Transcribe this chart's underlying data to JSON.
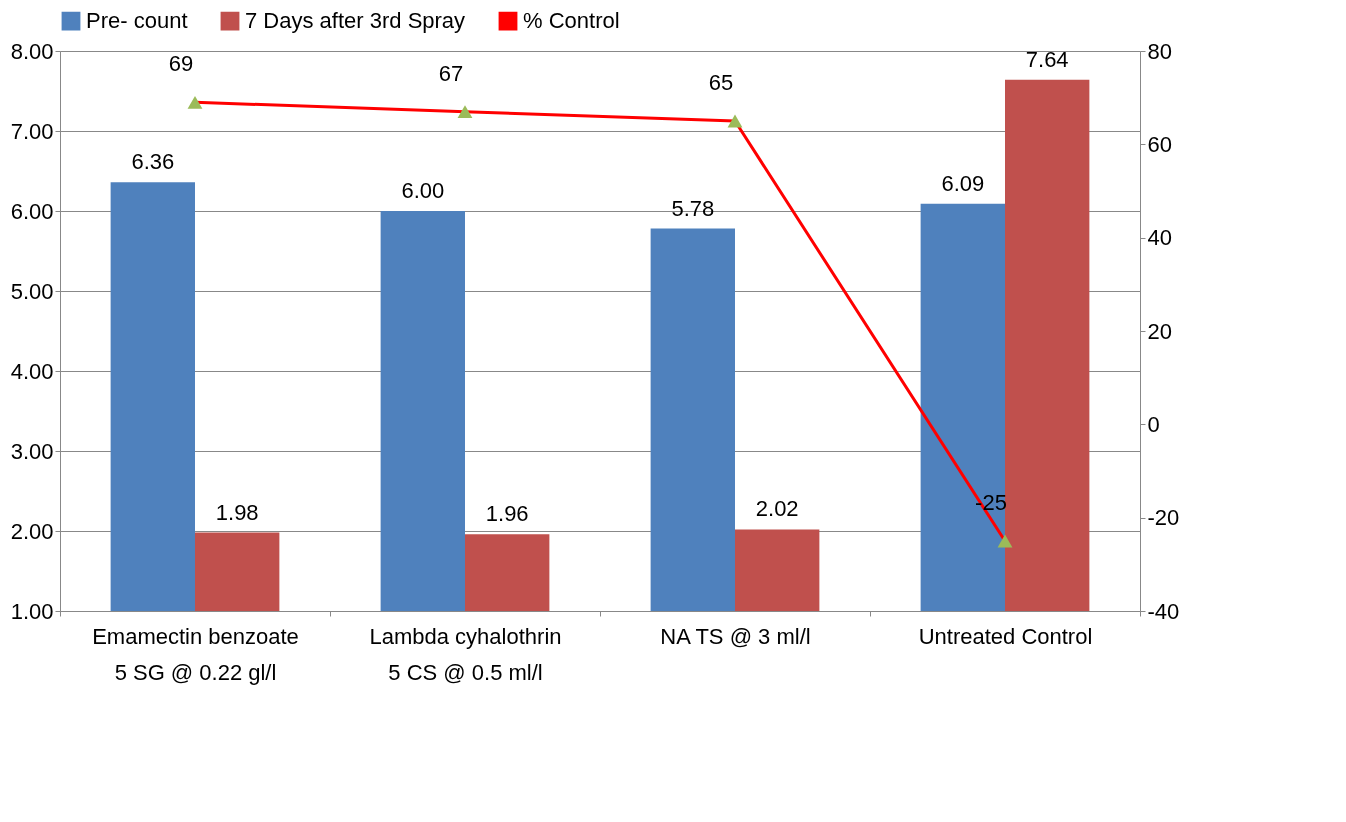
{
  "chart_data": {
    "type": "bar",
    "categories": [
      "Emamectin benzoate 5 SG @ 0.22 gl/l",
      "Lambda cyhalothrin 5 CS @ 0.5 ml/l",
      "NA TS @ 3 ml/l",
      "Untreated Control"
    ],
    "series": [
      {
        "name": "Pre- count",
        "type": "bar",
        "color": "#4f81bd",
        "values": [
          6.36,
          6.0,
          5.78,
          6.09
        ],
        "value_labels": [
          "6.36",
          "6.00",
          "5.78",
          "6.09"
        ]
      },
      {
        "name": "7 Days after 3rd Spray",
        "type": "bar",
        "color": "#c0504d",
        "values": [
          1.98,
          1.96,
          2.02,
          7.64
        ],
        "value_labels": [
          "1.98",
          "1.96",
          "2.02",
          "7.64"
        ]
      },
      {
        "name": "% Control",
        "type": "line",
        "axis": "y2",
        "color": "#ff0000",
        "colors": [
          "#9bbb59",
          "#9bbb59",
          "#9bbb59",
          "#9bbb59"
        ],
        "marker": "triangle",
        "values": [
          69,
          67,
          65,
          -25
        ],
        "value_labels": [
          "69",
          "67",
          "65",
          "-25"
        ]
      }
    ],
    "ylim": [
      1,
      8
    ],
    "yticks": [
      {
        "value": 1,
        "label": "1.00"
      },
      {
        "value": 2,
        "label": "2.00"
      },
      {
        "value": 3,
        "label": "3.00"
      },
      {
        "value": 4,
        "label": "4.00"
      },
      {
        "value": 5,
        "label": "5.00"
      },
      {
        "value": 6,
        "label": "6.00"
      },
      {
        "value": 7,
        "label": "7.00"
      },
      {
        "value": 8,
        "label": "8.00"
      }
    ],
    "y2lim": [
      -40,
      80
    ],
    "y2ticks": [
      -40,
      -20,
      0,
      20,
      40,
      60,
      80
    ],
    "grid": "y",
    "legend": "top"
  }
}
